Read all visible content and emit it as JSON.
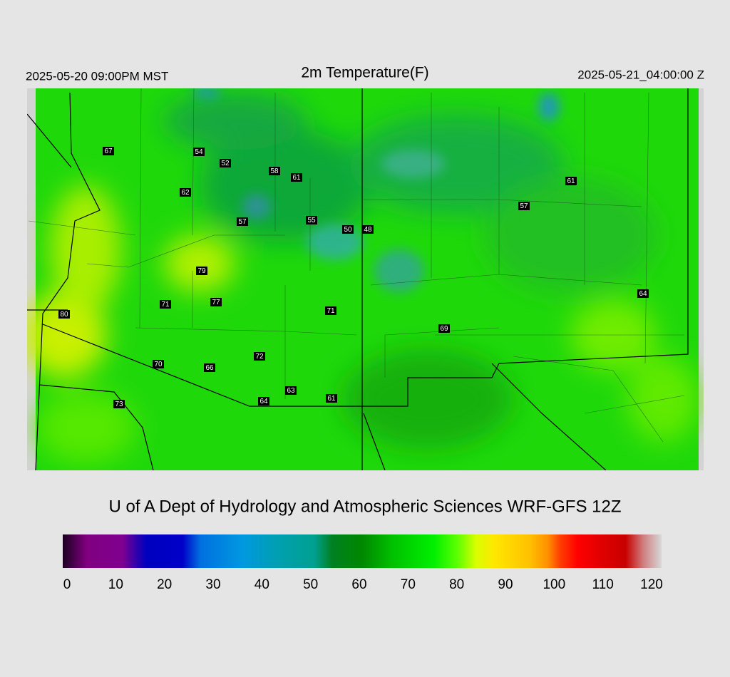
{
  "header": {
    "left": "2025-05-20 09:00PM MST",
    "title": "2m Temperature(F)",
    "right": "2025-05-21_04:00:00 Z"
  },
  "stations": [
    67,
    54,
    52,
    58,
    61,
    62,
    57,
    55,
    50,
    48,
    61,
    57,
    79,
    71,
    77,
    80,
    71,
    69,
    64,
    72,
    70,
    66,
    63,
    61,
    64,
    73
  ],
  "credit": "U of A Dept of Hydrology and Atmospheric Sciences WRF-GFS 12Z",
  "colorbar": {
    "range": [
      0,
      120
    ],
    "ticks": [
      0,
      10,
      20,
      30,
      40,
      50,
      60,
      70,
      80,
      90,
      100,
      110,
      120
    ]
  }
}
